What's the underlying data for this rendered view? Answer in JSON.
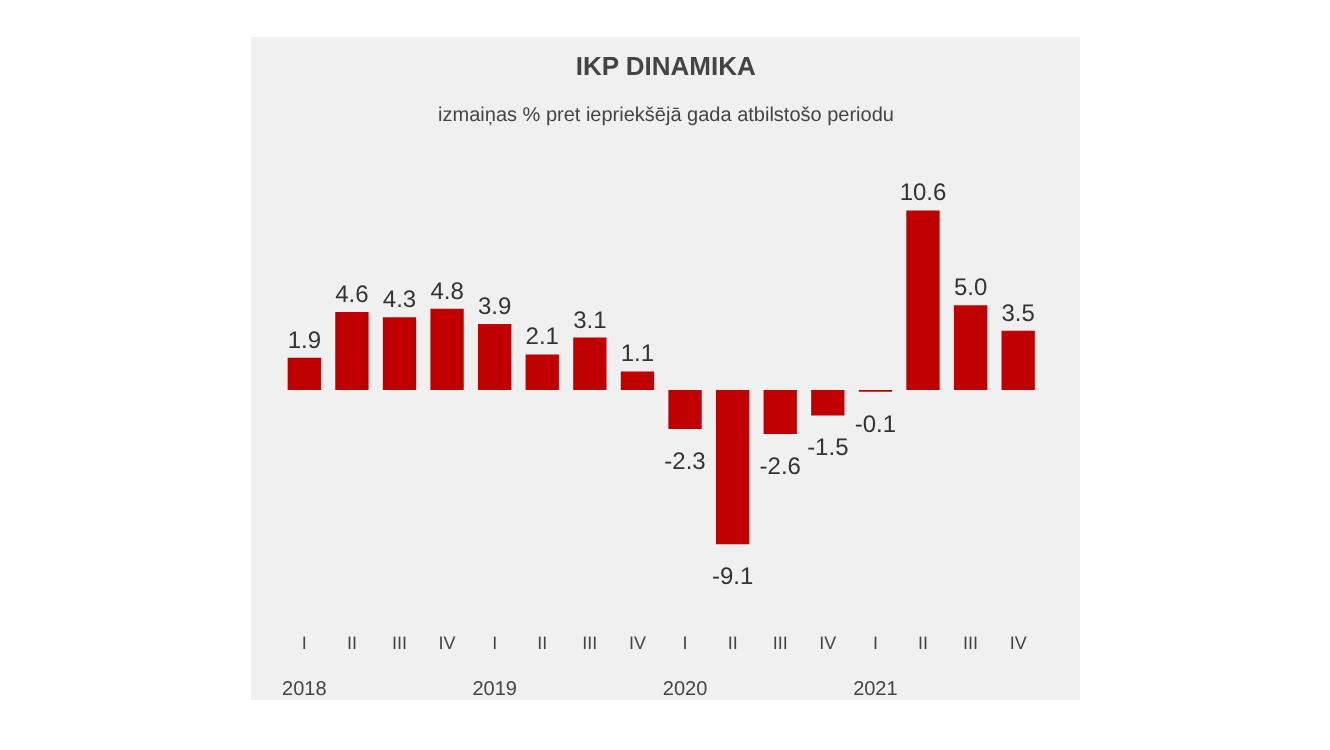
{
  "chart_data": {
    "type": "bar",
    "title": "IKP DINAMIKA",
    "subtitle": "izmaiņas % pret iepriekšējā gada atbilstošo periodu",
    "categories": [
      "I",
      "II",
      "III",
      "IV",
      "I",
      "II",
      "III",
      "IV",
      "I",
      "II",
      "III",
      "IV",
      "I",
      "II",
      "III",
      "IV"
    ],
    "values": [
      1.9,
      4.6,
      4.3,
      4.8,
      3.9,
      2.1,
      3.1,
      1.1,
      -2.3,
      -9.1,
      -2.6,
      -1.5,
      -0.1,
      10.6,
      5.0,
      3.5
    ],
    "value_labels": [
      "1.9",
      "4.6",
      "4.3",
      "4.8",
      "3.9",
      "2.1",
      "3.1",
      "1.1",
      "-2.3",
      "-9.1",
      "-2.6",
      "-1.5",
      "-0.1",
      "10.6",
      "5.0",
      "3.5"
    ],
    "color": "#c00000",
    "annotations": [
      "2018",
      "2019",
      "2020",
      "2021"
    ],
    "grid": false
  }
}
